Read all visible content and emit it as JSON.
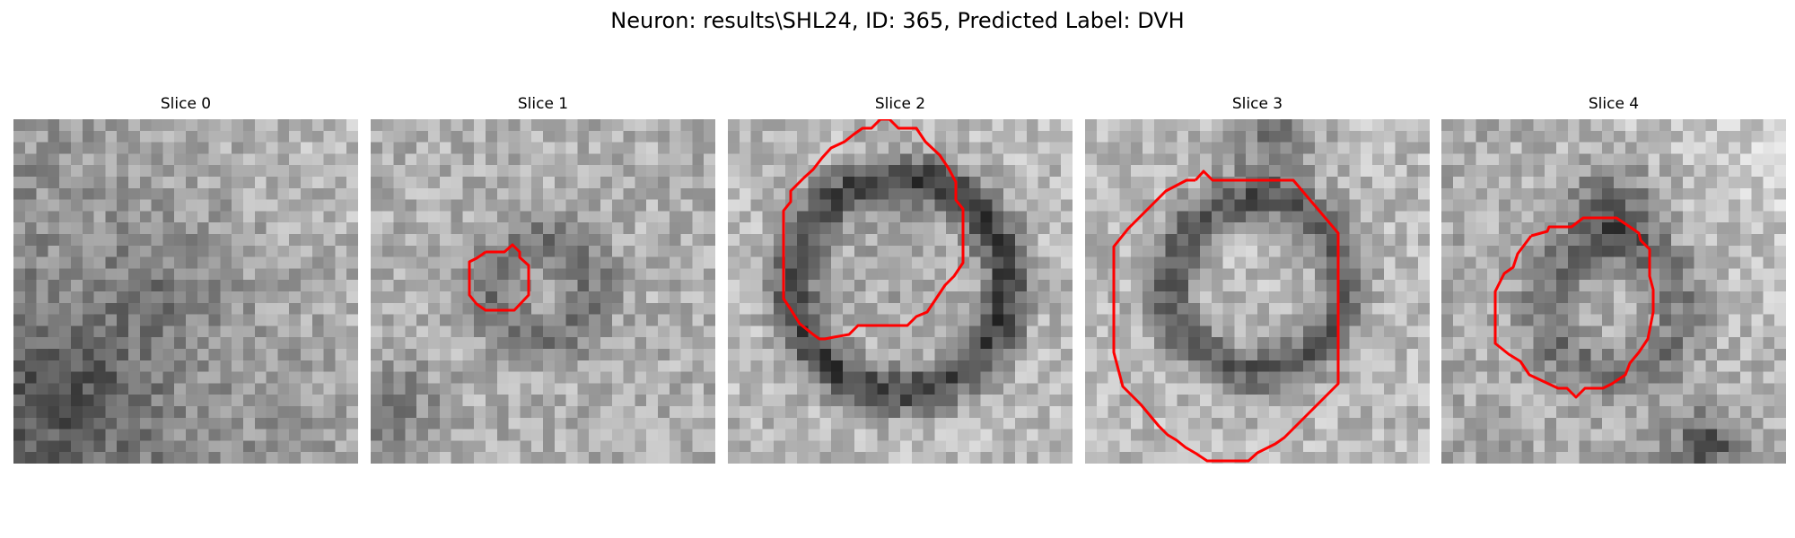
{
  "figure": {
    "title": "Neuron: results\\SHL24, ID: 365, Predicted Label: DVH"
  },
  "slices": [
    {
      "title": "Slice 0",
      "has_contour": false
    },
    {
      "title": "Slice 1",
      "has_contour": true
    },
    {
      "title": "Slice 2",
      "has_contour": true
    },
    {
      "title": "Slice 3",
      "has_contour": true
    },
    {
      "title": "Slice 4",
      "has_contour": true
    }
  ],
  "colors": {
    "contour": "#ff0000",
    "background": "#ffffff"
  }
}
